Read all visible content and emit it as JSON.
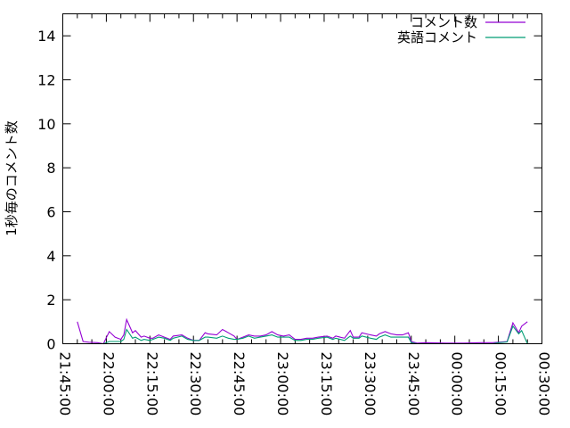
{
  "chart_data": {
    "type": "line",
    "title": "",
    "xlabel": "",
    "ylabel": "1秒毎のコメント数",
    "xlim": [
      "21:45:00",
      "00:30:00"
    ],
    "ylim": [
      0,
      15
    ],
    "x_ticks": [
      "21:45:00",
      "22:00:00",
      "22:15:00",
      "22:30:00",
      "22:45:00",
      "23:00:00",
      "23:15:00",
      "23:30:00",
      "23:45:00",
      "00:00:00",
      "00:15:00",
      "00:30:00"
    ],
    "y_ticks": [
      "0",
      "2",
      "4",
      "6",
      "8",
      "10",
      "12",
      "14"
    ],
    "grid": false,
    "legend_position": "top-right",
    "colors": {
      "total": "#9400d3",
      "english": "#009e73"
    },
    "x": [
      "21:50",
      "21:52",
      "21:54",
      "21:57",
      "21:59",
      "22:01",
      "22:03",
      "22:05",
      "22:06",
      "22:07",
      "22:09",
      "22:10",
      "22:12",
      "22:13",
      "22:15",
      "22:16",
      "22:18",
      "22:20",
      "22:22",
      "22:23",
      "22:26",
      "22:28",
      "22:30",
      "22:32",
      "22:34",
      "22:35",
      "22:38",
      "22:40",
      "22:42",
      "22:44",
      "22:45",
      "22:47",
      "22:49",
      "22:51",
      "22:53",
      "22:55",
      "22:57",
      "22:59",
      "23:01",
      "23:03",
      "23:05",
      "23:07",
      "23:09",
      "23:11",
      "23:13",
      "23:16",
      "23:18",
      "23:19",
      "23:22",
      "23:24",
      "23:25",
      "23:27",
      "23:28",
      "23:31",
      "23:33",
      "23:34",
      "23:36",
      "23:38",
      "23:40",
      "23:42",
      "23:44",
      "23:45",
      "23:47",
      "23:50",
      "23:57",
      "00:03",
      "00:09",
      "00:13",
      "00:15",
      "00:18",
      "00:20",
      "00:22",
      "00:23",
      "00:25"
    ],
    "series": [
      {
        "name": "コメント数",
        "values": [
          1.0,
          0.1,
          0.07,
          0.05,
          0,
          0.55,
          0.3,
          0.2,
          0.4,
          1.1,
          0.5,
          0.6,
          0.3,
          0.35,
          0.25,
          0.25,
          0.4,
          0.3,
          0.2,
          0.35,
          0.4,
          0.25,
          0.15,
          0.15,
          0.5,
          0.45,
          0.4,
          0.65,
          0.5,
          0.35,
          0.2,
          0.3,
          0.4,
          0.35,
          0.35,
          0.4,
          0.55,
          0.4,
          0.35,
          0.4,
          0.2,
          0.2,
          0.25,
          0.25,
          0.3,
          0.35,
          0.25,
          0.35,
          0.25,
          0.6,
          0.3,
          0.3,
          0.5,
          0.4,
          0.35,
          0.45,
          0.55,
          0.45,
          0.4,
          0.4,
          0.5,
          0.1,
          0.03,
          0.05,
          0.03,
          0.03,
          0.05,
          0.05,
          0.07,
          0.1,
          0.95,
          0.5,
          0.8,
          1.0
        ]
      },
      {
        "name": "英語コメント",
        "values": [
          0,
          0,
          0,
          0,
          0,
          0.1,
          0.1,
          0.1,
          0.2,
          0.65,
          0.25,
          0.3,
          0.15,
          0.2,
          0.15,
          0.2,
          0.3,
          0.25,
          0.15,
          0.25,
          0.35,
          0.2,
          0.15,
          0.15,
          0.3,
          0.3,
          0.25,
          0.35,
          0.25,
          0.2,
          0.2,
          0.25,
          0.35,
          0.25,
          0.3,
          0.35,
          0.4,
          0.3,
          0.3,
          0.3,
          0.15,
          0.15,
          0.2,
          0.2,
          0.25,
          0.3,
          0.2,
          0.25,
          0.15,
          0.35,
          0.25,
          0.25,
          0.35,
          0.25,
          0.2,
          0.3,
          0.4,
          0.3,
          0.3,
          0.3,
          0.3,
          0.05,
          0,
          0,
          0,
          0,
          0,
          0,
          0.05,
          0.08,
          0.8,
          0.45,
          0.6,
          0
        ]
      }
    ]
  }
}
